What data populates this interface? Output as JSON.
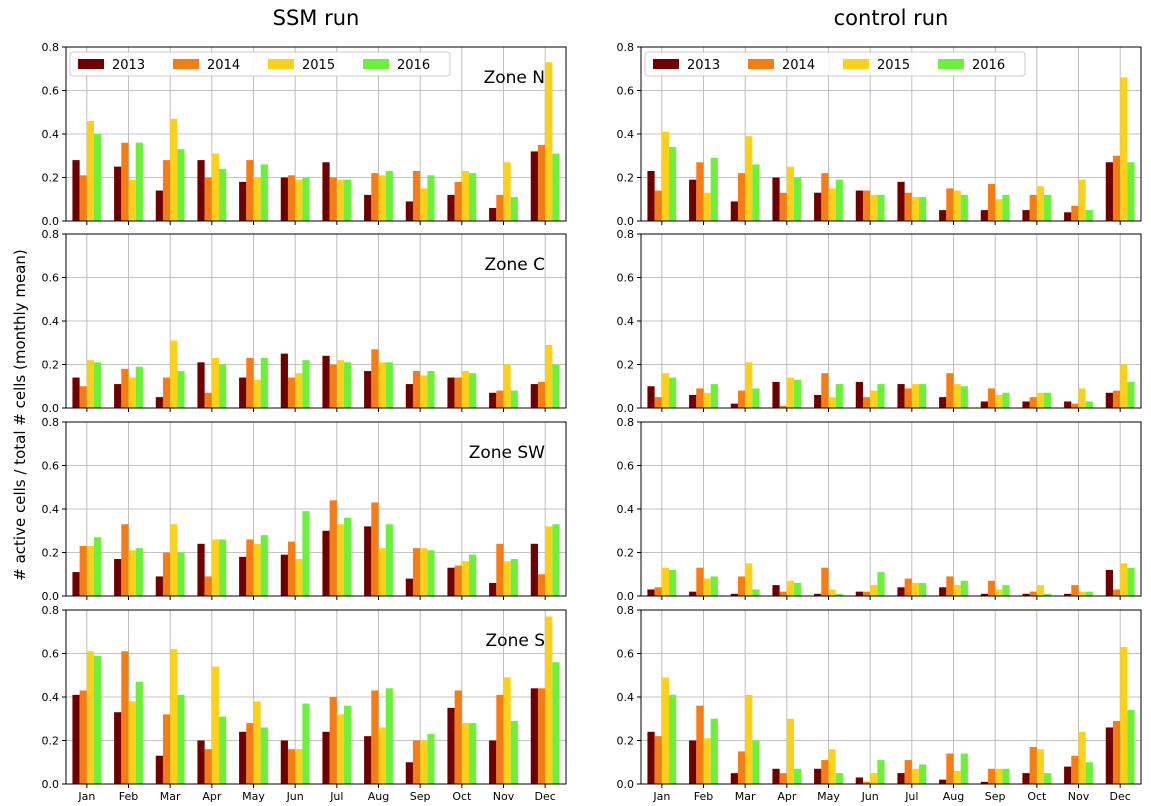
{
  "figure": {
    "column_titles": [
      "SSM run",
      "control run"
    ],
    "ylabel": "# active cells / total # cells (monthly mean)"
  },
  "colors": {
    "2013": "#6e0000",
    "2014": "#f57d16",
    "2015": "#fcd11b",
    "2016": "#6bf03c"
  },
  "chart_data": [
    {
      "type": "bar",
      "column": "SSM run",
      "zone_label": "Zone N",
      "categories": [
        "Jan",
        "Feb",
        "Mar",
        "Apr",
        "May",
        "Jun",
        "Jul",
        "Aug",
        "Sep",
        "Oct",
        "Nov",
        "Dec"
      ],
      "ylim": [
        0,
        0.8
      ],
      "yticks": [
        "0.0",
        "0.2",
        "0.4",
        "0.6",
        "0.8"
      ],
      "grid": true,
      "legend": "top-left",
      "series": [
        {
          "name": "2013",
          "values": [
            0.28,
            0.25,
            0.14,
            0.28,
            0.18,
            0.2,
            0.27,
            0.12,
            0.09,
            0.12,
            0.06,
            0.32
          ]
        },
        {
          "name": "2014",
          "values": [
            0.21,
            0.36,
            0.28,
            0.2,
            0.28,
            0.21,
            0.2,
            0.22,
            0.23,
            0.18,
            0.12,
            0.35
          ]
        },
        {
          "name": "2015",
          "values": [
            0.46,
            0.19,
            0.47,
            0.31,
            0.2,
            0.19,
            0.19,
            0.21,
            0.15,
            0.23,
            0.27,
            0.73
          ]
        },
        {
          "name": "2016",
          "values": [
            0.4,
            0.36,
            0.33,
            0.24,
            0.26,
            0.2,
            0.19,
            0.23,
            0.21,
            0.22,
            0.11,
            0.31
          ]
        }
      ]
    },
    {
      "type": "bar",
      "column": "SSM run",
      "zone_label": "Zone C",
      "categories": [
        "Jan",
        "Feb",
        "Mar",
        "Apr",
        "May",
        "Jun",
        "Jul",
        "Aug",
        "Sep",
        "Oct",
        "Nov",
        "Dec"
      ],
      "ylim": [
        0,
        0.8
      ],
      "yticks": [
        "0.0",
        "0.2",
        "0.4",
        "0.6",
        "0.8"
      ],
      "grid": true,
      "series": [
        {
          "name": "2013",
          "values": [
            0.14,
            0.11,
            0.05,
            0.21,
            0.14,
            0.25,
            0.24,
            0.17,
            0.11,
            0.14,
            0.07,
            0.11
          ]
        },
        {
          "name": "2014",
          "values": [
            0.1,
            0.18,
            0.14,
            0.07,
            0.23,
            0.14,
            0.2,
            0.27,
            0.17,
            0.14,
            0.08,
            0.12
          ]
        },
        {
          "name": "2015",
          "values": [
            0.22,
            0.14,
            0.31,
            0.23,
            0.13,
            0.16,
            0.22,
            0.21,
            0.15,
            0.17,
            0.2,
            0.29
          ]
        },
        {
          "name": "2016",
          "values": [
            0.21,
            0.19,
            0.17,
            0.2,
            0.23,
            0.22,
            0.21,
            0.21,
            0.17,
            0.16,
            0.08,
            0.2
          ]
        }
      ]
    },
    {
      "type": "bar",
      "column": "SSM run",
      "zone_label": "Zone SW",
      "categories": [
        "Jan",
        "Feb",
        "Mar",
        "Apr",
        "May",
        "Jun",
        "Jul",
        "Aug",
        "Sep",
        "Oct",
        "Nov",
        "Dec"
      ],
      "ylim": [
        0,
        0.8
      ],
      "yticks": [
        "0.0",
        "0.2",
        "0.4",
        "0.6",
        "0.8"
      ],
      "grid": true,
      "series": [
        {
          "name": "2013",
          "values": [
            0.11,
            0.17,
            0.09,
            0.24,
            0.18,
            0.19,
            0.3,
            0.32,
            0.08,
            0.13,
            0.06,
            0.24
          ]
        },
        {
          "name": "2014",
          "values": [
            0.23,
            0.33,
            0.2,
            0.09,
            0.26,
            0.25,
            0.44,
            0.43,
            0.22,
            0.14,
            0.24,
            0.1
          ]
        },
        {
          "name": "2015",
          "values": [
            0.23,
            0.21,
            0.33,
            0.26,
            0.24,
            0.17,
            0.33,
            0.22,
            0.22,
            0.16,
            0.16,
            0.32
          ]
        },
        {
          "name": "2016",
          "values": [
            0.27,
            0.22,
            0.2,
            0.26,
            0.28,
            0.39,
            0.36,
            0.33,
            0.21,
            0.19,
            0.17,
            0.33
          ]
        }
      ]
    },
    {
      "type": "bar",
      "column": "SSM run",
      "zone_label": "Zone S",
      "categories": [
        "Jan",
        "Feb",
        "Mar",
        "Apr",
        "May",
        "Jun",
        "Jul",
        "Aug",
        "Sep",
        "Oct",
        "Nov",
        "Dec"
      ],
      "ylim": [
        0,
        0.8
      ],
      "yticks": [
        "0.0",
        "0.2",
        "0.4",
        "0.6",
        "0.8"
      ],
      "grid": true,
      "series": [
        {
          "name": "2013",
          "values": [
            0.41,
            0.33,
            0.13,
            0.2,
            0.24,
            0.2,
            0.24,
            0.22,
            0.1,
            0.35,
            0.2,
            0.44
          ]
        },
        {
          "name": "2014",
          "values": [
            0.43,
            0.61,
            0.32,
            0.16,
            0.28,
            0.16,
            0.4,
            0.43,
            0.2,
            0.43,
            0.41,
            0.44
          ]
        },
        {
          "name": "2015",
          "values": [
            0.61,
            0.38,
            0.62,
            0.54,
            0.38,
            0.16,
            0.32,
            0.26,
            0.2,
            0.28,
            0.49,
            0.77
          ]
        },
        {
          "name": "2016",
          "values": [
            0.59,
            0.47,
            0.41,
            0.31,
            0.26,
            0.37,
            0.36,
            0.44,
            0.23,
            0.28,
            0.29,
            0.56
          ]
        }
      ]
    },
    {
      "type": "bar",
      "column": "control run",
      "zone_label": "",
      "categories": [
        "Jan",
        "Feb",
        "Mar",
        "Apr",
        "May",
        "Jun",
        "Jul",
        "Aug",
        "Sep",
        "Oct",
        "Nov",
        "Dec"
      ],
      "ylim": [
        0,
        0.8
      ],
      "yticks": [
        "0.0",
        "0.2",
        "0.4",
        "0.6",
        "0.8"
      ],
      "grid": true,
      "legend": "top-left",
      "series": [
        {
          "name": "2013",
          "values": [
            0.23,
            0.19,
            0.09,
            0.2,
            0.13,
            0.14,
            0.18,
            0.05,
            0.05,
            0.05,
            0.04,
            0.27
          ]
        },
        {
          "name": "2014",
          "values": [
            0.14,
            0.27,
            0.22,
            0.13,
            0.22,
            0.14,
            0.13,
            0.15,
            0.17,
            0.12,
            0.07,
            0.3
          ]
        },
        {
          "name": "2015",
          "values": [
            0.41,
            0.13,
            0.39,
            0.25,
            0.15,
            0.12,
            0.11,
            0.14,
            0.1,
            0.16,
            0.19,
            0.66
          ]
        },
        {
          "name": "2016",
          "values": [
            0.34,
            0.29,
            0.26,
            0.2,
            0.19,
            0.12,
            0.11,
            0.12,
            0.12,
            0.12,
            0.05,
            0.27
          ]
        }
      ]
    },
    {
      "type": "bar",
      "column": "control run",
      "zone_label": "",
      "categories": [
        "Jan",
        "Feb",
        "Mar",
        "Apr",
        "May",
        "Jun",
        "Jul",
        "Aug",
        "Sep",
        "Oct",
        "Nov",
        "Dec"
      ],
      "ylim": [
        0,
        0.8
      ],
      "yticks": [
        "0.0",
        "0.2",
        "0.4",
        "0.6",
        "0.8"
      ],
      "grid": true,
      "series": [
        {
          "name": "2013",
          "values": [
            0.1,
            0.06,
            0.02,
            0.12,
            0.06,
            0.12,
            0.11,
            0.05,
            0.03,
            0.03,
            0.03,
            0.07
          ]
        },
        {
          "name": "2014",
          "values": [
            0.05,
            0.09,
            0.08,
            0.01,
            0.16,
            0.05,
            0.09,
            0.16,
            0.09,
            0.05,
            0.02,
            0.08
          ]
        },
        {
          "name": "2015",
          "values": [
            0.16,
            0.07,
            0.21,
            0.14,
            0.05,
            0.08,
            0.11,
            0.11,
            0.06,
            0.07,
            0.09,
            0.2
          ]
        },
        {
          "name": "2016",
          "values": [
            0.14,
            0.11,
            0.09,
            0.13,
            0.11,
            0.11,
            0.11,
            0.1,
            0.07,
            0.07,
            0.03,
            0.12
          ]
        }
      ]
    },
    {
      "type": "bar",
      "column": "control run",
      "zone_label": "",
      "categories": [
        "Jan",
        "Feb",
        "Mar",
        "Apr",
        "May",
        "Jun",
        "Jul",
        "Aug",
        "Sep",
        "Oct",
        "Nov",
        "Dec"
      ],
      "ylim": [
        0,
        0.8
      ],
      "yticks": [
        "0.0",
        "0.2",
        "0.4",
        "0.6",
        "0.8"
      ],
      "grid": true,
      "series": [
        {
          "name": "2013",
          "values": [
            0.03,
            0.02,
            0.01,
            0.05,
            0.01,
            0.02,
            0.04,
            0.04,
            0.01,
            0.01,
            0.01,
            0.12
          ]
        },
        {
          "name": "2014",
          "values": [
            0.04,
            0.13,
            0.09,
            0.02,
            0.13,
            0.02,
            0.08,
            0.09,
            0.07,
            0.02,
            0.05,
            0.03
          ]
        },
        {
          "name": "2015",
          "values": [
            0.13,
            0.08,
            0.15,
            0.07,
            0.03,
            0.05,
            0.06,
            0.05,
            0.03,
            0.05,
            0.02,
            0.15
          ]
        },
        {
          "name": "2016",
          "values": [
            0.12,
            0.09,
            0.03,
            0.06,
            0.01,
            0.11,
            0.06,
            0.07,
            0.05,
            0.01,
            0.02,
            0.13
          ]
        }
      ]
    },
    {
      "type": "bar",
      "column": "control run",
      "zone_label": "",
      "categories": [
        "Jan",
        "Feb",
        "Mar",
        "Apr",
        "May",
        "Jun",
        "Jul",
        "Aug",
        "Sep",
        "Oct",
        "Nov",
        "Dec"
      ],
      "ylim": [
        0,
        0.8
      ],
      "yticks": [
        "0.0",
        "0.2",
        "0.4",
        "0.6",
        "0.8"
      ],
      "grid": true,
      "series": [
        {
          "name": "2013",
          "values": [
            0.24,
            0.2,
            0.05,
            0.07,
            0.07,
            0.03,
            0.05,
            0.02,
            0.01,
            0.05,
            0.08,
            0.26
          ]
        },
        {
          "name": "2014",
          "values": [
            0.22,
            0.36,
            0.15,
            0.05,
            0.11,
            0.01,
            0.11,
            0.14,
            0.07,
            0.17,
            0.13,
            0.29
          ]
        },
        {
          "name": "2015",
          "values": [
            0.49,
            0.21,
            0.41,
            0.3,
            0.16,
            0.05,
            0.07,
            0.06,
            0.07,
            0.16,
            0.24,
            0.63
          ]
        },
        {
          "name": "2016",
          "values": [
            0.41,
            0.3,
            0.2,
            0.07,
            0.05,
            0.11,
            0.09,
            0.14,
            0.07,
            0.05,
            0.1,
            0.34
          ]
        }
      ]
    }
  ]
}
